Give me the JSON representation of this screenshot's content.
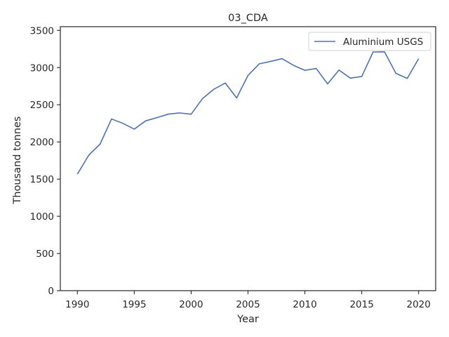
{
  "chart_data": {
    "type": "line",
    "title": "03_CDA",
    "xlabel": "Year",
    "ylabel": "Thousand tonnes",
    "xlim": [
      1988.5,
      2021.5
    ],
    "ylim": [
      0,
      3550
    ],
    "xticks": [
      1990,
      1995,
      2000,
      2005,
      2010,
      2015,
      2020
    ],
    "yticks": [
      0,
      500,
      1000,
      1500,
      2000,
      2500,
      3000,
      3500
    ],
    "grid": false,
    "legend_position": "top-right",
    "series": [
      {
        "name": "Aluminium USGS",
        "color": "#4c72b0",
        "x": [
          1990,
          1991,
          1992,
          1993,
          1994,
          1995,
          1996,
          1997,
          1998,
          1999,
          2000,
          2001,
          2002,
          2003,
          2004,
          2005,
          2006,
          2007,
          2008,
          2009,
          2010,
          2011,
          2012,
          2013,
          2014,
          2015,
          2016,
          2017,
          2018,
          2019,
          2020
        ],
        "y": [
          1567,
          1822,
          1972,
          2309,
          2250,
          2172,
          2283,
          2327,
          2374,
          2390,
          2373,
          2583,
          2709,
          2792,
          2592,
          2894,
          3051,
          3083,
          3120,
          3030,
          2963,
          2988,
          2780,
          2967,
          2858,
          2880,
          3210,
          3212,
          2923,
          2854,
          3119
        ]
      }
    ]
  }
}
